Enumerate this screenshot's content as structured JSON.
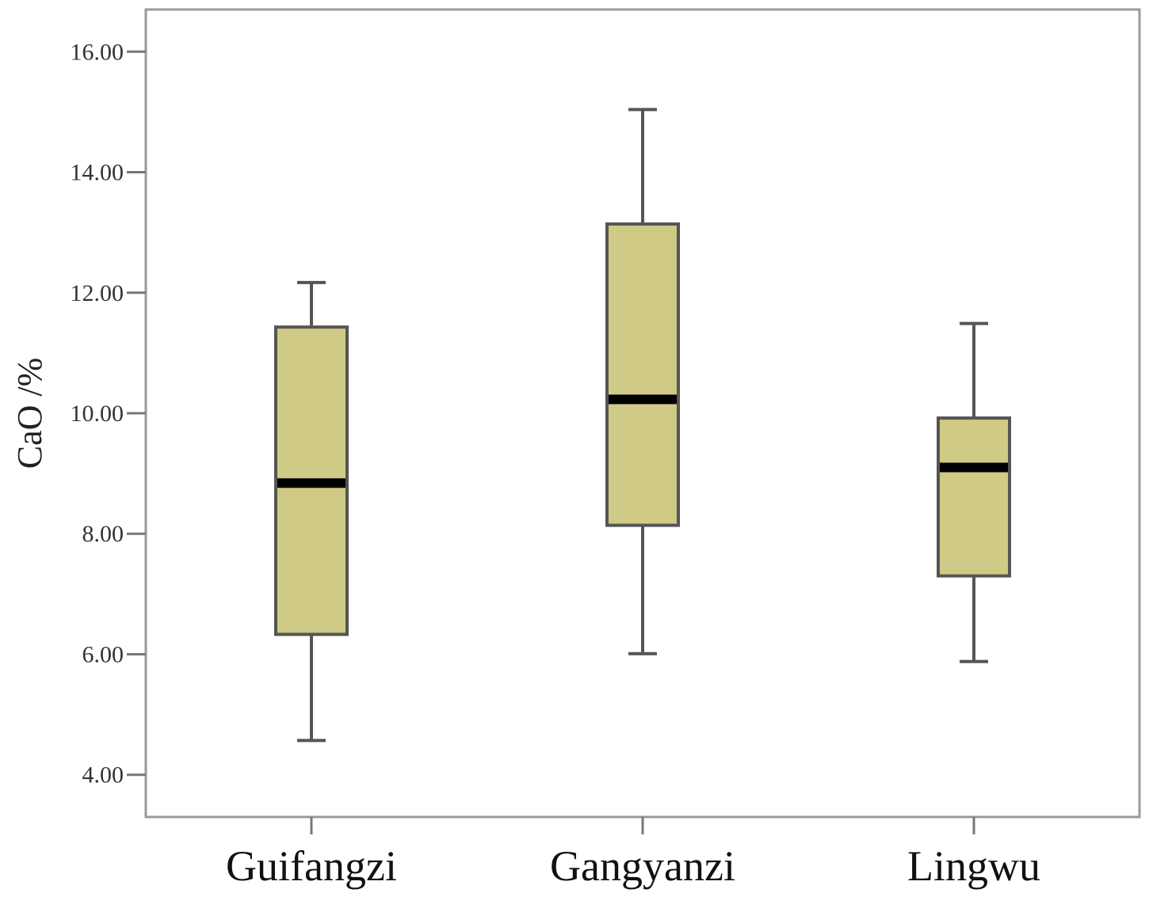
{
  "chart_data": {
    "type": "boxplot",
    "title": "",
    "xlabel": "",
    "ylabel": "CaO /%",
    "ylim": [
      3.3,
      16.7
    ],
    "yticks": [
      4.0,
      6.0,
      8.0,
      10.0,
      12.0,
      14.0,
      16.0
    ],
    "ytick_labels": [
      "4.00",
      "6.00",
      "8.00",
      "10.00",
      "12.00",
      "14.00",
      "16.00"
    ],
    "categories": [
      "Guifangzi",
      "Gangyanzi",
      "Lingwu"
    ],
    "boxes": [
      {
        "category": "Guifangzi",
        "min": 4.57,
        "q1": 6.33,
        "median": 8.84,
        "q3": 11.43,
        "max": 12.17
      },
      {
        "category": "Gangyanzi",
        "min": 6.01,
        "q1": 8.14,
        "median": 10.23,
        "q3": 13.14,
        "max": 15.04
      },
      {
        "category": "Lingwu",
        "min": 5.88,
        "q1": 7.3,
        "median": 9.1,
        "q3": 9.92,
        "max": 11.49
      }
    ],
    "grid": false,
    "legend": "none",
    "colors": {
      "box_fill": "#cfca85",
      "box_stroke": "#555555",
      "median": "#000000",
      "whisker": "#555555",
      "frame": "#9a9a9a"
    }
  }
}
